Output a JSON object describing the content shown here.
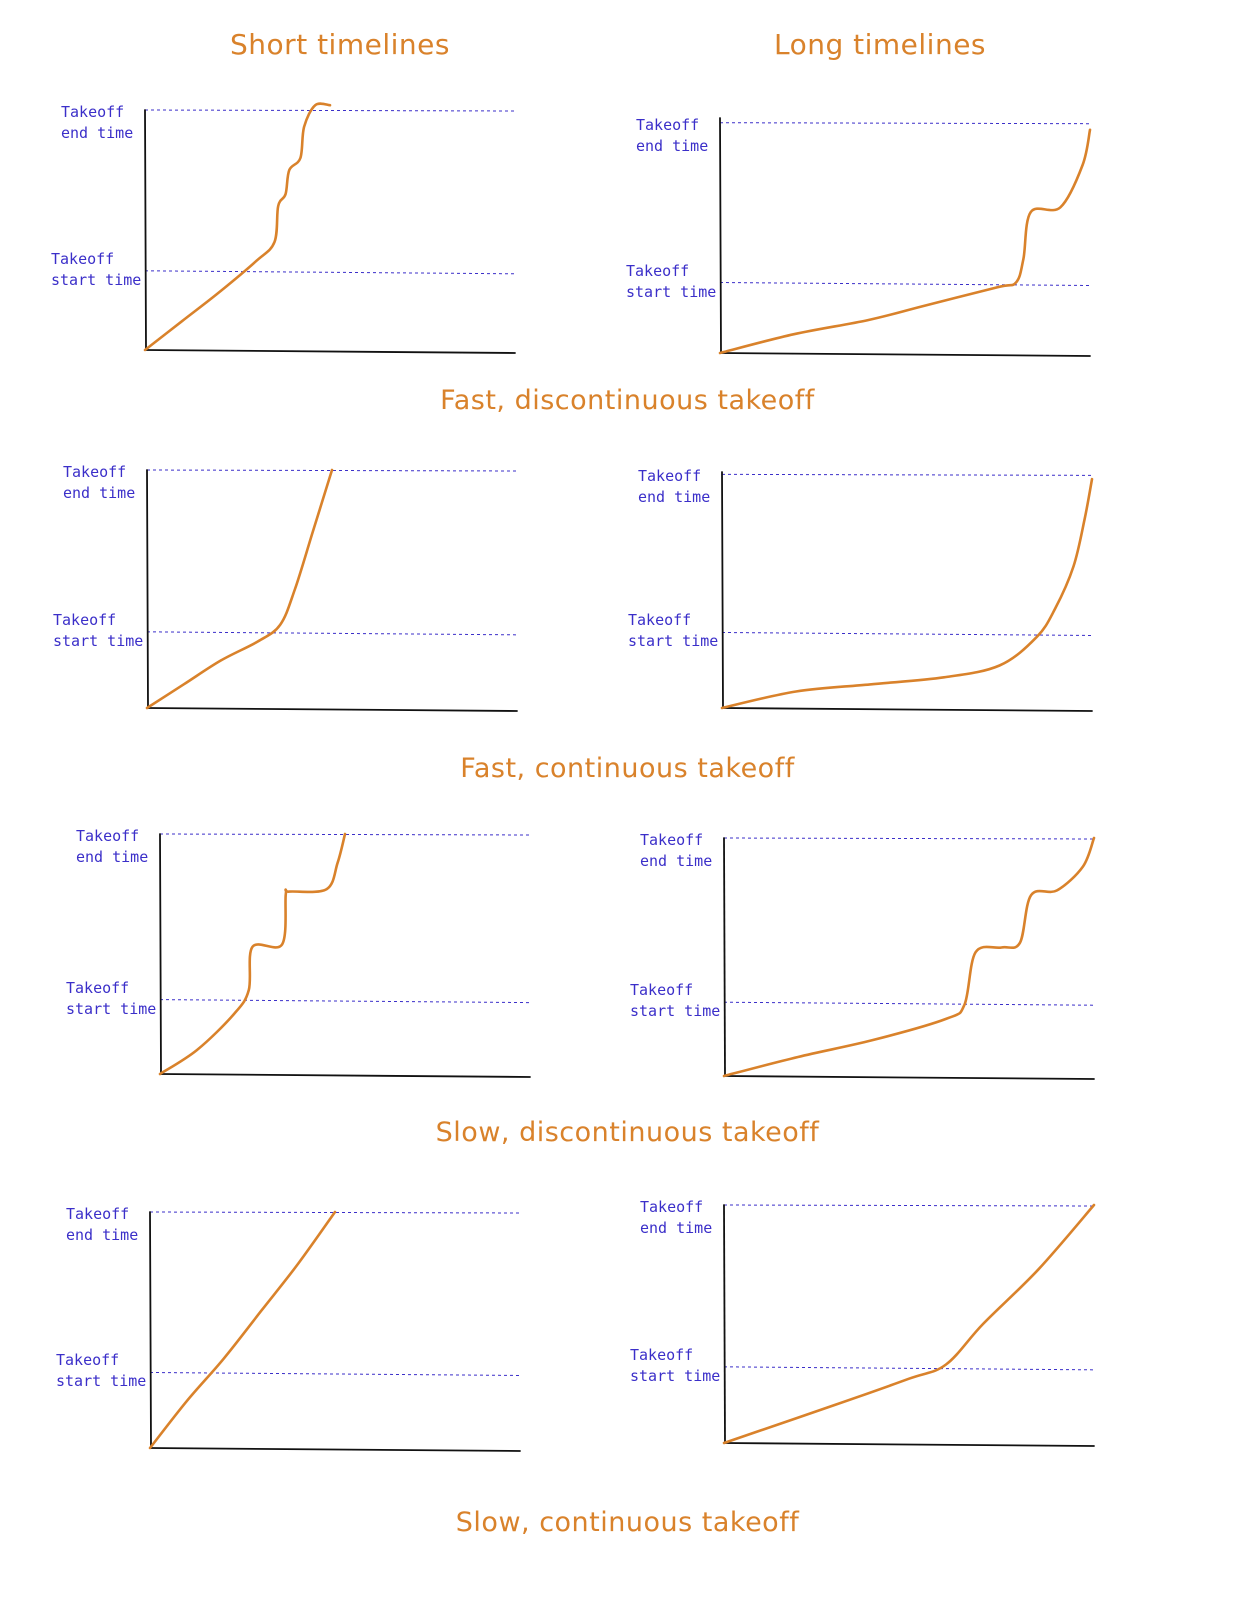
{
  "column_headers": [
    "Short timelines",
    "Long timelines"
  ],
  "row_titles": [
    "Fast, discontinuous takeoff",
    "Fast, continuous takeoff",
    "Slow, discontinuous takeoff",
    "Slow, continuous takeoff"
  ],
  "labels": {
    "end_line1": "Takeoff",
    "end_line2": "end time",
    "start_line1": "Takeoff",
    "start_line2": "start time"
  },
  "colors": {
    "curve": "#d9822b",
    "dashed": "#3b2fc9",
    "axis": "#111111",
    "title": "#d9822b"
  },
  "chart_data": [
    {
      "type": "line",
      "panel": "Fast, discontinuous takeoff / Short timelines",
      "x": [
        0,
        0.1,
        0.2,
        0.3,
        0.35,
        0.36,
        0.38,
        0.39,
        0.42,
        0.43,
        0.46,
        0.5
      ],
      "y": [
        0,
        0.12,
        0.24,
        0.37,
        0.45,
        0.6,
        0.65,
        0.75,
        0.8,
        0.93,
        1.02,
        1.02
      ],
      "start_level": 0.33,
      "end_level": 1.0
    },
    {
      "type": "line",
      "panel": "Fast, discontinuous takeoff / Long timelines",
      "x": [
        0,
        0.2,
        0.4,
        0.55,
        0.75,
        0.8,
        0.82,
        0.84,
        0.92,
        0.98,
        1.0
      ],
      "y": [
        0,
        0.08,
        0.14,
        0.2,
        0.28,
        0.3,
        0.4,
        0.6,
        0.62,
        0.8,
        0.95
      ],
      "start_level": 0.3,
      "end_level": 0.98
    },
    {
      "type": "line",
      "panel": "Fast, continuous takeoff / Short timelines",
      "x": [
        0,
        0.1,
        0.2,
        0.3,
        0.36,
        0.4,
        0.45,
        0.5
      ],
      "y": [
        0,
        0.1,
        0.2,
        0.28,
        0.35,
        0.5,
        0.75,
        1.0
      ],
      "start_level": 0.32,
      "end_level": 1.0
    },
    {
      "type": "line",
      "panel": "Fast, continuous takeoff / Long timelines",
      "x": [
        0,
        0.2,
        0.4,
        0.6,
        0.75,
        0.85,
        0.9,
        0.95,
        0.98,
        1.0
      ],
      "y": [
        0,
        0.07,
        0.1,
        0.13,
        0.18,
        0.3,
        0.42,
        0.6,
        0.8,
        0.97
      ],
      "start_level": 0.32,
      "end_level": 0.99
    },
    {
      "type": "line",
      "panel": "Slow, discontinuous takeoff / Short timelines",
      "x": [
        0,
        0.1,
        0.2,
        0.24,
        0.25,
        0.33,
        0.34,
        0.35,
        0.45,
        0.48,
        0.5
      ],
      "y": [
        0,
        0.1,
        0.25,
        0.35,
        0.53,
        0.54,
        0.75,
        0.76,
        0.77,
        0.88,
        1.0
      ],
      "start_level": 0.31,
      "end_level": 1.0
    },
    {
      "type": "line",
      "panel": "Slow, discontinuous takeoff / Long timelines",
      "x": [
        0,
        0.2,
        0.4,
        0.6,
        0.65,
        0.68,
        0.75,
        0.8,
        0.83,
        0.9,
        0.97,
        1.0
      ],
      "y": [
        0,
        0.08,
        0.15,
        0.24,
        0.3,
        0.52,
        0.54,
        0.56,
        0.76,
        0.78,
        0.88,
        1.0
      ],
      "start_level": 0.31,
      "end_level": 1.0
    },
    {
      "type": "line",
      "panel": "Slow, continuous takeoff / Short timelines",
      "x": [
        0,
        0.1,
        0.2,
        0.3,
        0.4,
        0.5
      ],
      "y": [
        0,
        0.2,
        0.38,
        0.58,
        0.78,
        1.0
      ],
      "start_level": 0.32,
      "end_level": 1.0
    },
    {
      "type": "line",
      "panel": "Slow, continuous takeoff / Long timelines",
      "x": [
        0,
        0.15,
        0.3,
        0.5,
        0.6,
        0.7,
        0.85,
        1.0
      ],
      "y": [
        0,
        0.08,
        0.16,
        0.27,
        0.33,
        0.5,
        0.73,
        1.0
      ],
      "start_level": 0.32,
      "end_level": 1.0
    }
  ]
}
